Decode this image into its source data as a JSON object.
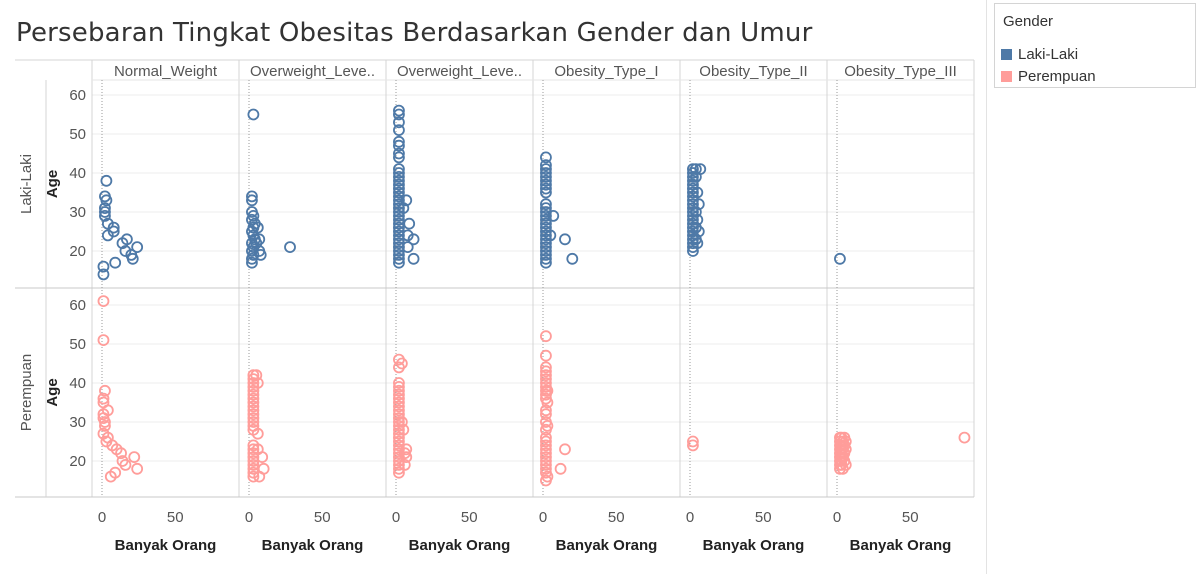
{
  "title": "Persebaran Tingkat Obesitas Berdasarkan Gender dan Umur",
  "legend": {
    "title": "Gender",
    "items": [
      {
        "label": "Laki-Laki",
        "color": "#4e79a7"
      },
      {
        "label": "Perempuan",
        "color": "#ff9d9a"
      }
    ]
  },
  "chart_data": {
    "type": "scatter",
    "columns": [
      "Normal_Weight",
      "Overweight_Leve..",
      "Overweight_Leve..",
      "Obesity_Type_I",
      "Obesity_Type_II",
      "Obesity_Type_III"
    ],
    "rows": [
      "Laki-Laki",
      "Perempuan"
    ],
    "xlabel": "Banyak Orang",
    "ylabel": "Age",
    "x_ticks": [
      0,
      50
    ],
    "y_ticks": [
      20,
      30,
      40,
      50,
      60
    ],
    "xlim": [
      -3,
      95
    ],
    "ylim": [
      11,
      64
    ],
    "colors": {
      "Laki-Laki": "#4e79a7",
      "Perempuan": "#ff9d9a"
    },
    "series": [
      {
        "name": "Laki-Laki",
        "panels": [
          [
            [
              1,
              14
            ],
            [
              1,
              16
            ],
            [
              2,
              29
            ],
            [
              2,
              30
            ],
            [
              2,
              31
            ],
            [
              2,
              34
            ],
            [
              3,
              33
            ],
            [
              3,
              38
            ],
            [
              4,
              27
            ],
            [
              4,
              24
            ],
            [
              8,
              25
            ],
            [
              8,
              26
            ],
            [
              9,
              17
            ],
            [
              14,
              22
            ],
            [
              16,
              20
            ],
            [
              17,
              23
            ],
            [
              20,
              19
            ],
            [
              21,
              18
            ],
            [
              24,
              21
            ]
          ],
          [
            [
              3,
              55
            ],
            [
              2,
              34
            ],
            [
              2,
              33
            ],
            [
              2,
              30
            ],
            [
              3,
              29
            ],
            [
              2,
              28
            ],
            [
              4,
              27
            ],
            [
              3,
              26
            ],
            [
              2,
              25
            ],
            [
              3,
              24
            ],
            [
              4,
              23
            ],
            [
              2,
              22
            ],
            [
              3,
              21
            ],
            [
              2,
              20
            ],
            [
              3,
              19
            ],
            [
              2,
              18
            ],
            [
              2,
              17
            ],
            [
              5,
              22
            ],
            [
              6,
              26
            ],
            [
              7,
              23
            ],
            [
              7,
              20
            ],
            [
              8,
              19
            ],
            [
              28,
              21
            ]
          ],
          [
            [
              2,
              56
            ],
            [
              2,
              55
            ],
            [
              2,
              53
            ],
            [
              2,
              51
            ],
            [
              2,
              48
            ],
            [
              2,
              47
            ],
            [
              2,
              45
            ],
            [
              2,
              44
            ],
            [
              2,
              41
            ],
            [
              2,
              40
            ],
            [
              2,
              39
            ],
            [
              2,
              38
            ],
            [
              2,
              37
            ],
            [
              2,
              36
            ],
            [
              2,
              35
            ],
            [
              2,
              34
            ],
            [
              2,
              33
            ],
            [
              2,
              32
            ],
            [
              2,
              31
            ],
            [
              2,
              30
            ],
            [
              2,
              29
            ],
            [
              2,
              28
            ],
            [
              2,
              27
            ],
            [
              2,
              26
            ],
            [
              2,
              25
            ],
            [
              2,
              24
            ],
            [
              2,
              23
            ],
            [
              2,
              22
            ],
            [
              2,
              21
            ],
            [
              2,
              20
            ],
            [
              2,
              19
            ],
            [
              2,
              18
            ],
            [
              2,
              17
            ],
            [
              5,
              31
            ],
            [
              7,
              33
            ],
            [
              8,
              24
            ],
            [
              8,
              21
            ],
            [
              9,
              27
            ],
            [
              12,
              23
            ],
            [
              12,
              18
            ]
          ],
          [
            [
              2,
              44
            ],
            [
              2,
              42
            ],
            [
              2,
              41
            ],
            [
              2,
              40
            ],
            [
              2,
              39
            ],
            [
              2,
              38
            ],
            [
              2,
              37
            ],
            [
              2,
              36
            ],
            [
              2,
              35
            ],
            [
              2,
              32
            ],
            [
              2,
              31
            ],
            [
              2,
              30
            ],
            [
              2,
              29
            ],
            [
              2,
              28
            ],
            [
              2,
              27
            ],
            [
              2,
              26
            ],
            [
              2,
              25
            ],
            [
              2,
              24
            ],
            [
              2,
              23
            ],
            [
              2,
              22
            ],
            [
              2,
              21
            ],
            [
              2,
              20
            ],
            [
              2,
              19
            ],
            [
              2,
              18
            ],
            [
              2,
              17
            ],
            [
              5,
              24
            ],
            [
              7,
              29
            ],
            [
              15,
              23
            ],
            [
              20,
              18
            ]
          ],
          [
            [
              2,
              41
            ],
            [
              2,
              40
            ],
            [
              2,
              39
            ],
            [
              2,
              38
            ],
            [
              2,
              37
            ],
            [
              2,
              36
            ],
            [
              2,
              35
            ],
            [
              2,
              34
            ],
            [
              2,
              33
            ],
            [
              2,
              32
            ],
            [
              2,
              31
            ],
            [
              2,
              30
            ],
            [
              2,
              29
            ],
            [
              2,
              28
            ],
            [
              2,
              27
            ],
            [
              2,
              26
            ],
            [
              2,
              25
            ],
            [
              2,
              24
            ],
            [
              2,
              23
            ],
            [
              2,
              22
            ],
            [
              2,
              21
            ],
            [
              2,
              20
            ],
            [
              4,
              41
            ],
            [
              4,
              39
            ],
            [
              4,
              30
            ],
            [
              4,
              26
            ],
            [
              4,
              23
            ],
            [
              5,
              35
            ],
            [
              5,
              28
            ],
            [
              5,
              22
            ],
            [
              6,
              32
            ],
            [
              6,
              25
            ],
            [
              7,
              41
            ]
          ],
          [
            [
              2,
              18
            ]
          ]
        ]
      },
      {
        "name": "Perempuan",
        "panels": [
          [
            [
              1,
              61
            ],
            [
              1,
              51
            ],
            [
              1,
              36
            ],
            [
              1,
              35
            ],
            [
              1,
              32
            ],
            [
              1,
              31
            ],
            [
              1,
              27
            ],
            [
              2,
              38
            ],
            [
              2,
              30
            ],
            [
              2,
              29
            ],
            [
              3,
              25
            ],
            [
              4,
              33
            ],
            [
              4,
              26
            ],
            [
              6,
              16
            ],
            [
              7,
              24
            ],
            [
              9,
              17
            ],
            [
              10,
              23
            ],
            [
              13,
              22
            ],
            [
              14,
              20
            ],
            [
              16,
              19
            ],
            [
              22,
              21
            ],
            [
              24,
              18
            ]
          ],
          [
            [
              3,
              42
            ],
            [
              3,
              41
            ],
            [
              3,
              40
            ],
            [
              3,
              39
            ],
            [
              3,
              38
            ],
            [
              3,
              37
            ],
            [
              3,
              36
            ],
            [
              3,
              35
            ],
            [
              3,
              34
            ],
            [
              3,
              33
            ],
            [
              3,
              32
            ],
            [
              3,
              31
            ],
            [
              3,
              30
            ],
            [
              3,
              29
            ],
            [
              3,
              28
            ],
            [
              3,
              24
            ],
            [
              3,
              23
            ],
            [
              3,
              22
            ],
            [
              3,
              21
            ],
            [
              3,
              20
            ],
            [
              3,
              19
            ],
            [
              3,
              18
            ],
            [
              3,
              17
            ],
            [
              3,
              16
            ],
            [
              5,
              42
            ],
            [
              6,
              40
            ],
            [
              6,
              27
            ],
            [
              6,
              23
            ],
            [
              7,
              16
            ],
            [
              9,
              21
            ],
            [
              10,
              18
            ]
          ],
          [
            [
              2,
              46
            ],
            [
              2,
              44
            ],
            [
              2,
              40
            ],
            [
              2,
              39
            ],
            [
              2,
              38
            ],
            [
              2,
              37
            ],
            [
              2,
              36
            ],
            [
              2,
              35
            ],
            [
              2,
              34
            ],
            [
              2,
              33
            ],
            [
              2,
              32
            ],
            [
              2,
              31
            ],
            [
              2,
              30
            ],
            [
              2,
              29
            ],
            [
              2,
              28
            ],
            [
              2,
              27
            ],
            [
              2,
              26
            ],
            [
              2,
              25
            ],
            [
              2,
              24
            ],
            [
              2,
              23
            ],
            [
              2,
              22
            ],
            [
              2,
              21
            ],
            [
              2,
              20
            ],
            [
              2,
              19
            ],
            [
              2,
              18
            ],
            [
              2,
              17
            ],
            [
              4,
              45
            ],
            [
              4,
              30
            ],
            [
              5,
              28
            ],
            [
              6,
              22
            ],
            [
              6,
              19
            ],
            [
              7,
              23
            ],
            [
              7,
              21
            ]
          ],
          [
            [
              2,
              52
            ],
            [
              2,
              47
            ],
            [
              2,
              44
            ],
            [
              2,
              43
            ],
            [
              2,
              42
            ],
            [
              2,
              41
            ],
            [
              2,
              40
            ],
            [
              2,
              39
            ],
            [
              2,
              38
            ],
            [
              2,
              37
            ],
            [
              2,
              36
            ],
            [
              2,
              33
            ],
            [
              2,
              32
            ],
            [
              2,
              30
            ],
            [
              2,
              28
            ],
            [
              2,
              26
            ],
            [
              2,
              25
            ],
            [
              2,
              24
            ],
            [
              2,
              23
            ],
            [
              2,
              22
            ],
            [
              2,
              21
            ],
            [
              2,
              20
            ],
            [
              2,
              19
            ],
            [
              2,
              18
            ],
            [
              2,
              17
            ],
            [
              2,
              15
            ],
            [
              3,
              38
            ],
            [
              3,
              35
            ],
            [
              3,
              29
            ],
            [
              3,
              16
            ],
            [
              12,
              18
            ],
            [
              15,
              23
            ]
          ],
          [
            [
              2,
              25
            ],
            [
              2,
              24
            ]
          ],
          [
            [
              2,
              26
            ],
            [
              2,
              25
            ],
            [
              2,
              24
            ],
            [
              2,
              23
            ],
            [
              2,
              22
            ],
            [
              2,
              21
            ],
            [
              2,
              20
            ],
            [
              2,
              19
            ],
            [
              2,
              18
            ],
            [
              3,
              26
            ],
            [
              3,
              24
            ],
            [
              3,
              22
            ],
            [
              3,
              20
            ],
            [
              3,
              19
            ],
            [
              4,
              25
            ],
            [
              4,
              23
            ],
            [
              4,
              21
            ],
            [
              4,
              18
            ],
            [
              5,
              26
            ],
            [
              5,
              24
            ],
            [
              5,
              22
            ],
            [
              5,
              20
            ],
            [
              6,
              25
            ],
            [
              6,
              23
            ],
            [
              6,
              19
            ],
            [
              87,
              26
            ]
          ]
        ]
      }
    ]
  }
}
